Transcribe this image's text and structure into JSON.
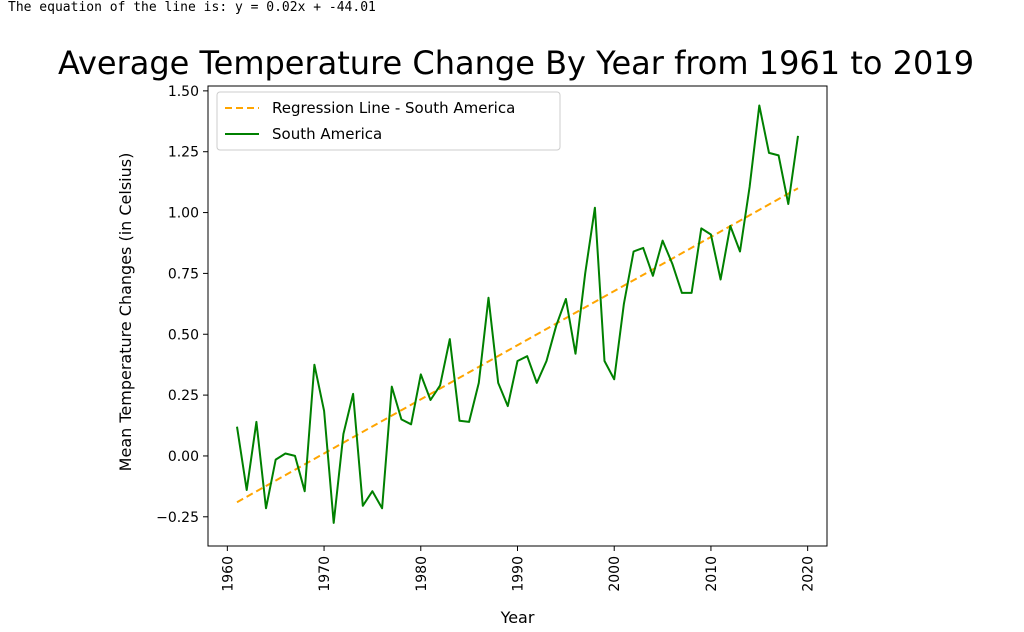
{
  "output_text": "The equation of the line is: y = 0.02x + -44.01",
  "chart_data": {
    "type": "line",
    "title": "Average Temperature Change By Year from 1961 to 2019",
    "xlabel": "Year",
    "ylabel": "Mean Temperature Changes (in Celsius)",
    "xlim": [
      1958,
      2022
    ],
    "ylim": [
      -0.37,
      1.52
    ],
    "xticks": [
      1960,
      1970,
      1980,
      1990,
      2000,
      2010,
      2020
    ],
    "yticks": [
      -0.25,
      0.0,
      0.25,
      0.5,
      0.75,
      1.0,
      1.25,
      1.5
    ],
    "ytick_labels": [
      "−0.25",
      "0.00",
      "0.25",
      "0.50",
      "0.75",
      "1.00",
      "1.25",
      "1.50"
    ],
    "legend_position": "top-left",
    "series": [
      {
        "name": "Regression Line - South America",
        "style": "dashed",
        "color": "#ffa500",
        "x": [
          1961,
          2019
        ],
        "y": [
          -0.19,
          1.1
        ]
      },
      {
        "name": "South America",
        "style": "solid",
        "color": "#008000",
        "x": [
          1961,
          1962,
          1963,
          1964,
          1965,
          1966,
          1967,
          1968,
          1969,
          1970,
          1971,
          1972,
          1973,
          1974,
          1975,
          1976,
          1977,
          1978,
          1979,
          1980,
          1981,
          1982,
          1983,
          1984,
          1985,
          1986,
          1987,
          1988,
          1989,
          1990,
          1991,
          1992,
          1993,
          1994,
          1995,
          1996,
          1997,
          1998,
          1999,
          2000,
          2001,
          2002,
          2003,
          2004,
          2005,
          2006,
          2007,
          2008,
          2009,
          2010,
          2011,
          2012,
          2013,
          2014,
          2015,
          2016,
          2017,
          2018,
          2019
        ],
        "y": [
          0.12,
          -0.14,
          0.14,
          -0.215,
          -0.015,
          0.01,
          0.0,
          -0.145,
          0.375,
          0.185,
          -0.275,
          0.09,
          0.255,
          -0.205,
          -0.145,
          -0.215,
          0.285,
          0.15,
          0.13,
          0.335,
          0.23,
          0.29,
          0.48,
          0.145,
          0.14,
          0.3,
          0.65,
          0.3,
          0.205,
          0.39,
          0.41,
          0.3,
          0.39,
          0.535,
          0.645,
          0.42,
          0.75,
          1.02,
          0.39,
          0.315,
          0.625,
          0.84,
          0.855,
          0.74,
          0.885,
          0.79,
          0.67,
          0.67,
          0.935,
          0.91,
          0.725,
          0.945,
          0.84,
          1.105,
          1.44,
          1.245,
          1.235,
          1.035,
          1.315
        ]
      }
    ]
  }
}
